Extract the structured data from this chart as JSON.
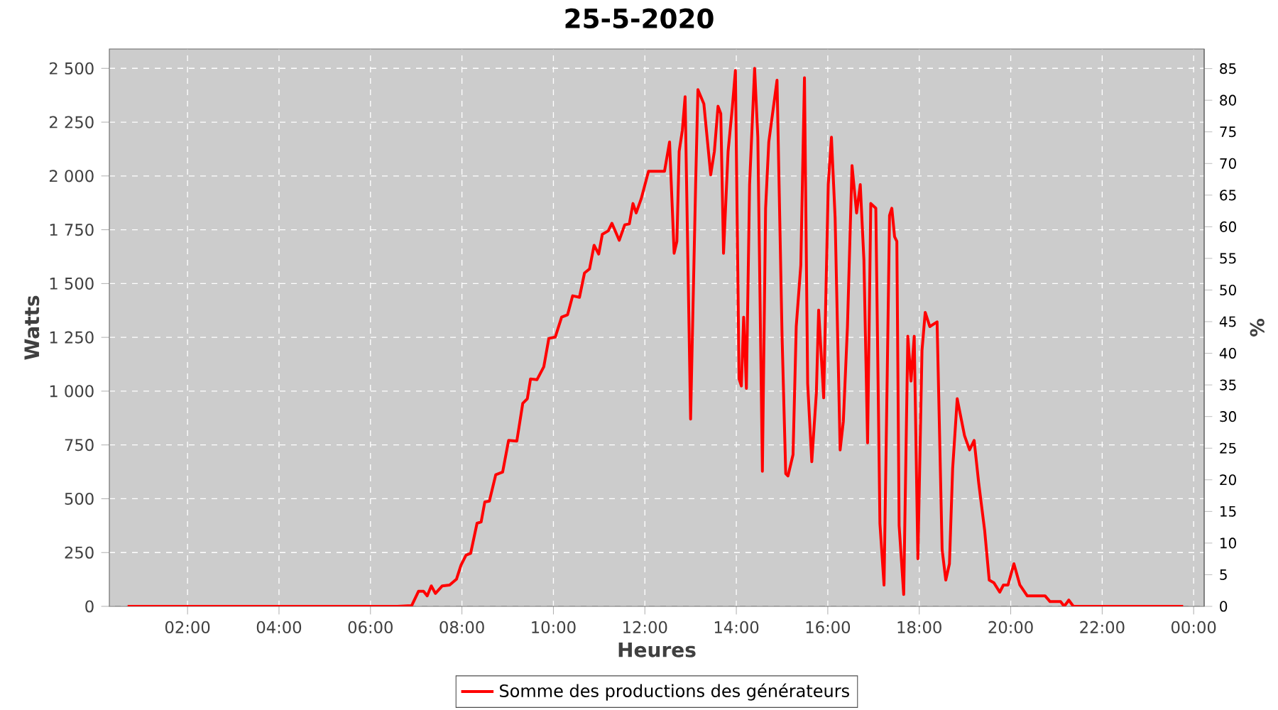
{
  "chart_data": {
    "type": "line",
    "title": "25-5-2020",
    "xlabel": "Heures",
    "ylabel": "Watts",
    "y2label": "%",
    "x": [
      0.69,
      6.59,
      6.9,
      7.05,
      7.16,
      7.24,
      7.33,
      7.42,
      7.57,
      7.73,
      7.88,
      7.98,
      8.09,
      8.19,
      8.33,
      8.42,
      8.5,
      8.6,
      8.74,
      8.89,
      9.02,
      9.2,
      9.33,
      9.43,
      9.5,
      9.64,
      9.79,
      9.9,
      10.04,
      10.18,
      10.31,
      10.42,
      10.57,
      10.68,
      10.79,
      10.89,
      10.99,
      11.07,
      11.2,
      11.28,
      11.44,
      11.56,
      11.66,
      11.74,
      11.81,
      11.92,
      12.08,
      12.43,
      12.54,
      12.64,
      12.7,
      12.75,
      12.82,
      12.88,
      13.0,
      13.11,
      13.16,
      13.29,
      13.44,
      13.52,
      13.6,
      13.66,
      13.72,
      13.82,
      13.91,
      13.98,
      14.06,
      14.11,
      14.16,
      14.22,
      14.29,
      14.4,
      14.47,
      14.57,
      14.64,
      14.71,
      14.8,
      14.89,
      15.0,
      15.08,
      15.13,
      15.24,
      15.31,
      15.41,
      15.49,
      15.56,
      15.65,
      15.75,
      15.8,
      15.91,
      16.01,
      16.08,
      16.16,
      16.27,
      16.34,
      16.43,
      16.53,
      16.63,
      16.71,
      16.79,
      16.87,
      16.94,
      17.05,
      17.14,
      17.23,
      17.3,
      17.35,
      17.4,
      17.46,
      17.51,
      17.56,
      17.66,
      17.75,
      17.82,
      17.89,
      17.97,
      18.06,
      18.13,
      18.23,
      18.39,
      18.5,
      18.58,
      18.66,
      18.73,
      18.83,
      18.99,
      19.1,
      19.2,
      19.3,
      19.43,
      19.53,
      19.63,
      19.76,
      19.84,
      19.94,
      20.07,
      20.2,
      20.36,
      20.75,
      20.86,
      21.09,
      21.17,
      21.27,
      21.37,
      23.77
    ],
    "series": [
      {
        "name": "Somme des productions des  générateurs",
        "color": "#ff0000",
        "values": [
          0,
          0,
          3,
          70,
          70,
          49,
          95,
          60,
          95,
          99,
          126,
          192,
          238,
          246,
          386,
          392,
          485,
          489,
          612,
          624,
          771,
          768,
          943,
          965,
          1057,
          1053,
          1113,
          1245,
          1251,
          1344,
          1355,
          1443,
          1436,
          1549,
          1568,
          1678,
          1637,
          1729,
          1745,
          1780,
          1701,
          1773,
          1777,
          1872,
          1828,
          1894,
          2022,
          2022,
          2158,
          1641,
          1696,
          2114,
          2213,
          2368,
          870,
          1960,
          2401,
          2335,
          2005,
          2114,
          2324,
          2290,
          1641,
          2114,
          2313,
          2490,
          1057,
          1024,
          1344,
          1013,
          1960,
          2500,
          2180,
          628,
          1850,
          2158,
          2302,
          2445,
          1255,
          617,
          606,
          705,
          1300,
          1586,
          2456,
          1035,
          672,
          991,
          1377,
          969,
          1960,
          2180,
          1806,
          727,
          859,
          1300,
          2048,
          1828,
          1960,
          1608,
          760,
          1872,
          1850,
          385,
          99,
          1080,
          1817,
          1850,
          1718,
          1696,
          375,
          55,
          1255,
          1047,
          1255,
          221,
          1189,
          1366,
          1300,
          1322,
          264,
          122,
          198,
          639,
          965,
          793,
          727,
          771,
          573,
          353,
          122,
          110,
          66,
          99,
          99,
          198,
          99,
          49,
          49,
          22,
          22,
          0,
          29,
          0,
          0
        ]
      }
    ],
    "xlim": [
      0.29,
      24.23
    ],
    "xticks": [
      {
        "value": 2,
        "label": "02:00"
      },
      {
        "value": 4,
        "label": "04:00"
      },
      {
        "value": 6,
        "label": "06:00"
      },
      {
        "value": 8,
        "label": "08:00"
      },
      {
        "value": 10,
        "label": "10:00"
      },
      {
        "value": 12,
        "label": "12:00"
      },
      {
        "value": 14,
        "label": "14:00"
      },
      {
        "value": 16,
        "label": "16:00"
      },
      {
        "value": 18,
        "label": "18:00"
      },
      {
        "value": 20,
        "label": "20:00"
      },
      {
        "value": 22,
        "label": "22:00"
      },
      {
        "value": 24,
        "label": "00:00"
      }
    ],
    "ylim": [
      0,
      2590
    ],
    "yticks": [
      0,
      250,
      500,
      750,
      {
        "value": 1000,
        "label": "1 000"
      },
      {
        "value": 1250,
        "label": "1 250"
      },
      {
        "value": 1500,
        "label": "1 500"
      },
      {
        "value": 1750,
        "label": "1 750"
      },
      {
        "value": 2000,
        "label": "2 000"
      },
      {
        "value": 2250,
        "label": "2 250"
      },
      {
        "value": 2500,
        "label": "2 500"
      }
    ],
    "y2lim": [
      0,
      88.1
    ],
    "y2ticks": [
      0,
      5,
      10,
      15,
      20,
      25,
      30,
      35,
      40,
      45,
      50,
      55,
      60,
      65,
      70,
      75,
      80,
      85
    ],
    "grid": true,
    "legend": "bottom",
    "line_style": "solid"
  }
}
